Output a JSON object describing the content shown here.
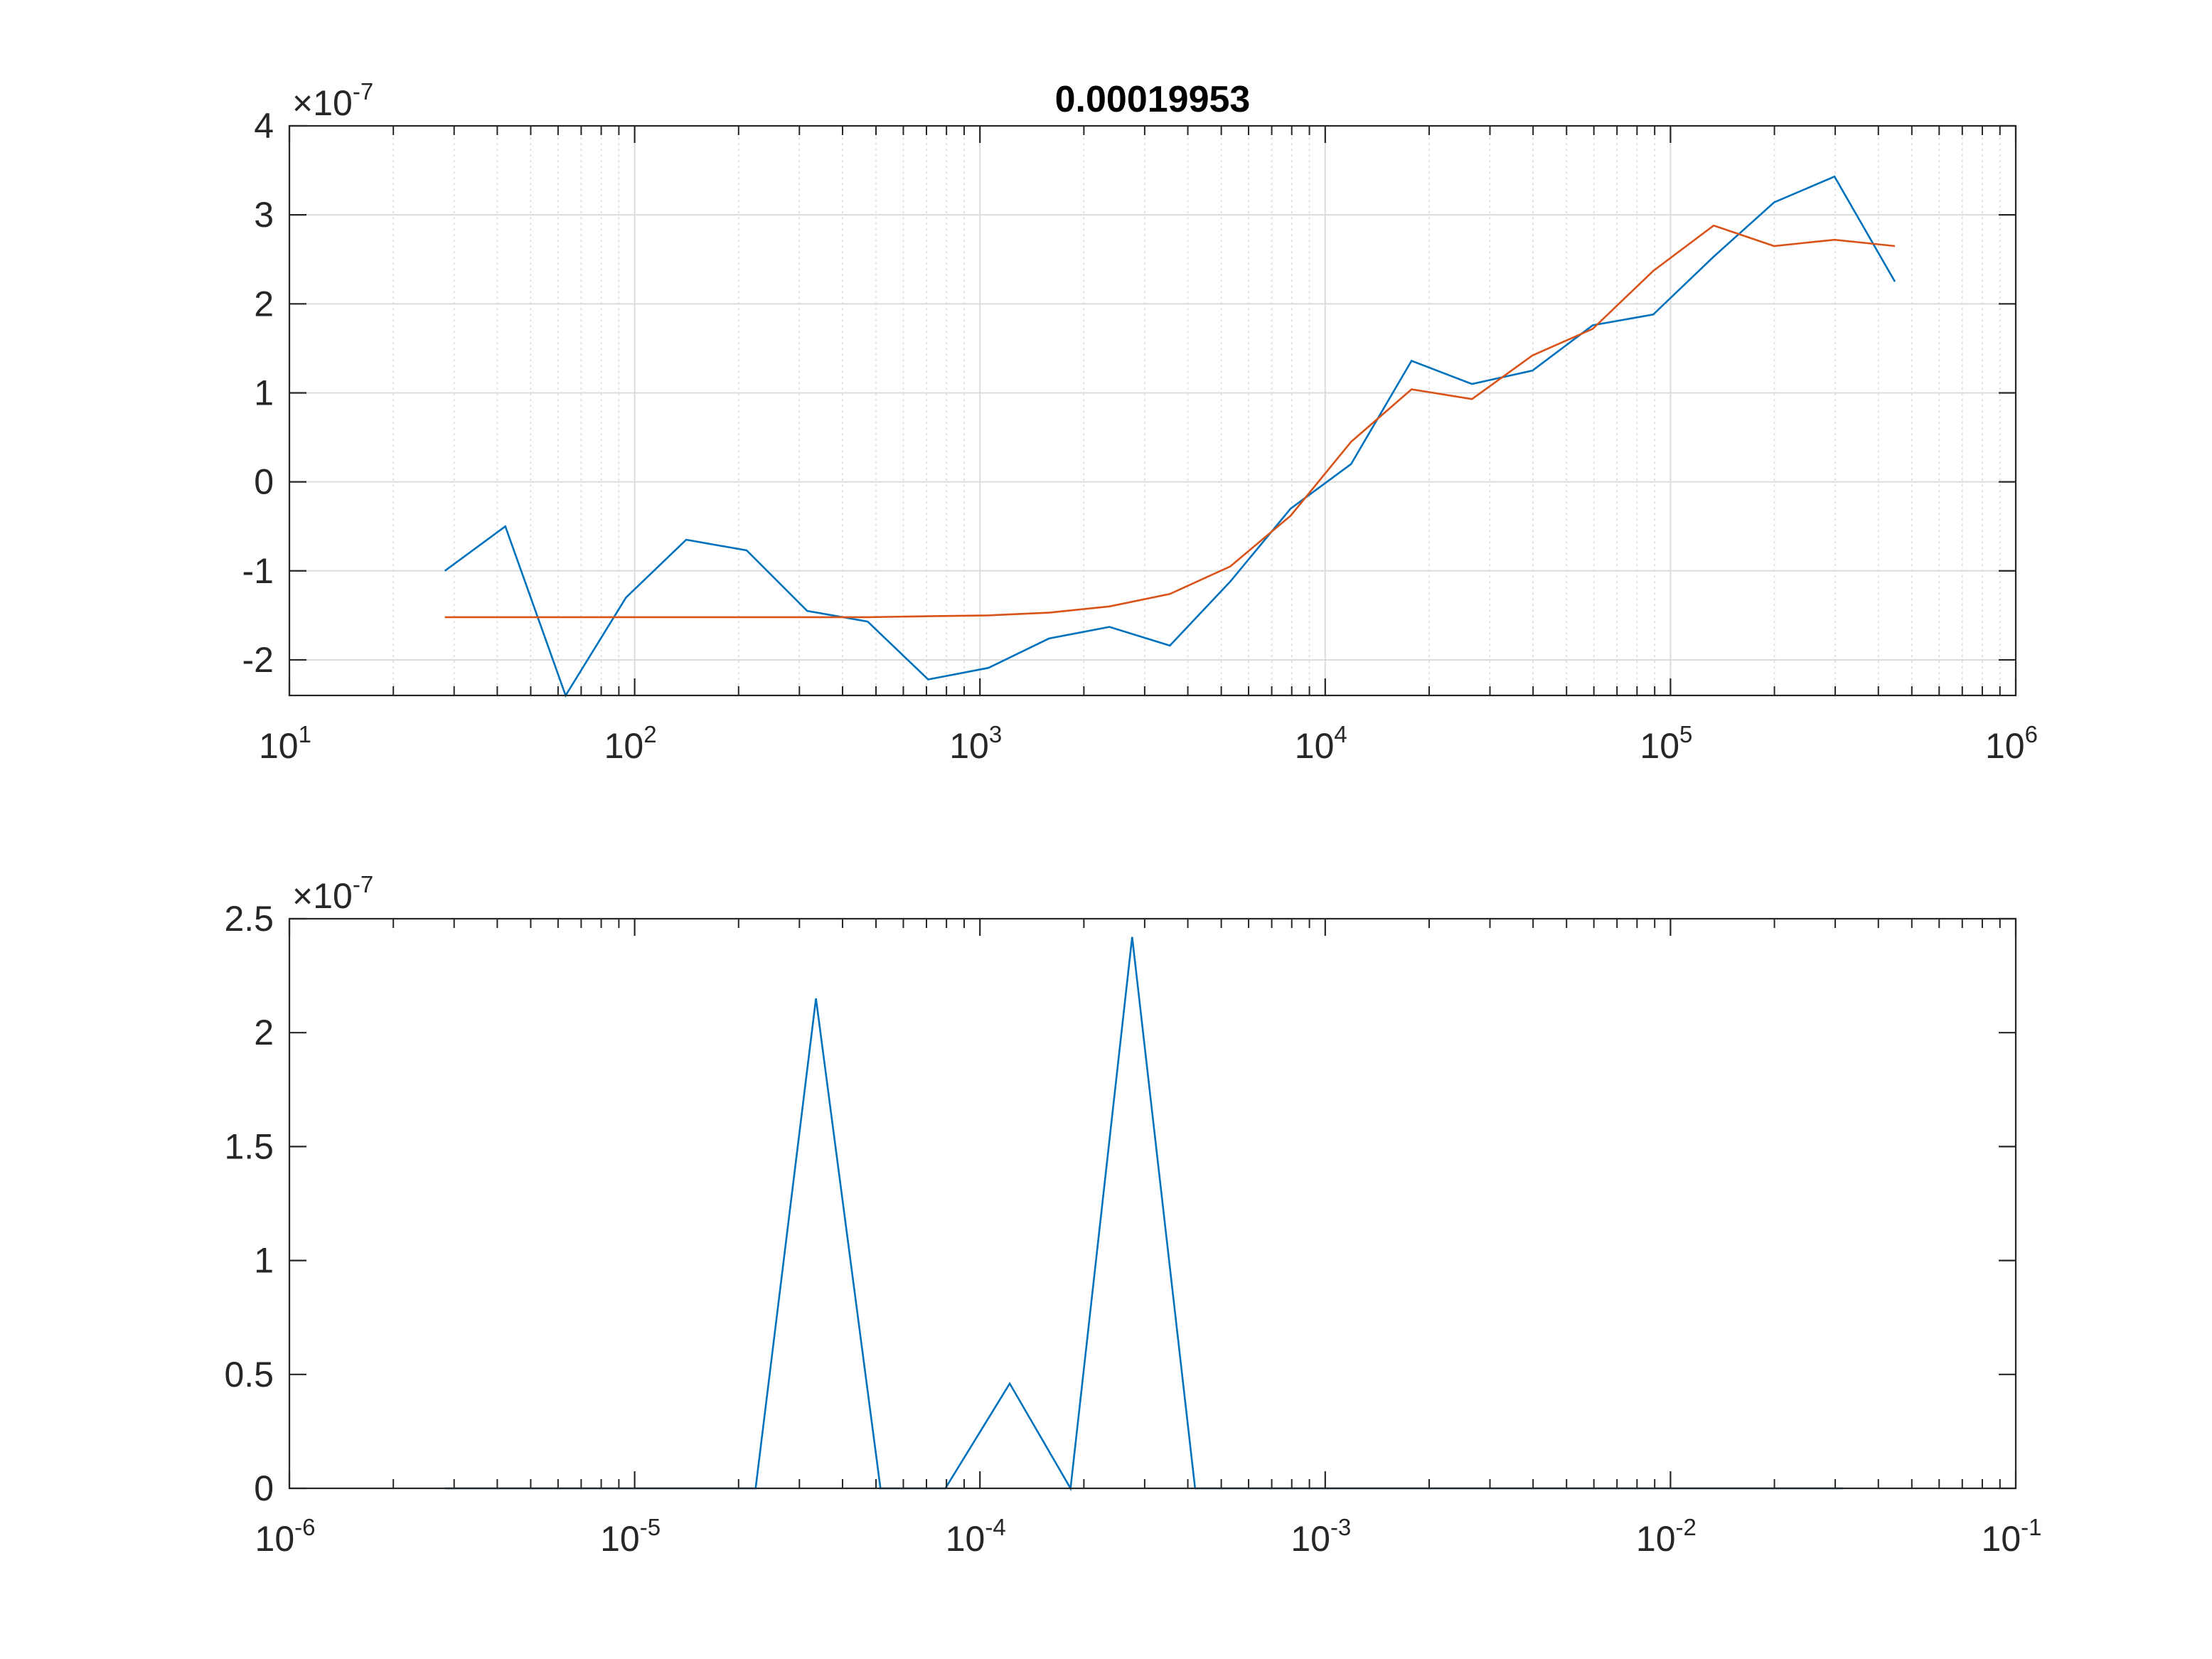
{
  "chart_data": [
    {
      "type": "line",
      "title": "0.00019953",
      "xscale": "log",
      "xlim": [
        10,
        1000000
      ],
      "ylim": [
        -2.4e-07,
        4e-07
      ],
      "y_multiplier_label": "×10",
      "y_multiplier_exponent": "-7",
      "grid": true,
      "x_ticks": [
        {
          "base": "10",
          "exp": "1",
          "value": 10
        },
        {
          "base": "10",
          "exp": "2",
          "value": 100
        },
        {
          "base": "10",
          "exp": "3",
          "value": 1000
        },
        {
          "base": "10",
          "exp": "4",
          "value": 10000
        },
        {
          "base": "10",
          "exp": "5",
          "value": 100000
        },
        {
          "base": "10",
          "exp": "6",
          "value": 1000000
        }
      ],
      "y_ticks": [
        {
          "label": "4",
          "value": 4e-07
        },
        {
          "label": "3",
          "value": 3e-07
        },
        {
          "label": "2",
          "value": 2e-07
        },
        {
          "label": "1",
          "value": 1e-07
        },
        {
          "label": "0",
          "value": 0
        },
        {
          "label": "-1",
          "value": -1e-07
        },
        {
          "label": "-2",
          "value": -2e-07
        }
      ],
      "series": [
        {
          "color": "#0072BD",
          "points": [
            [
              28.2,
              -1e-07
            ],
            [
              42.2,
              -5e-08
            ],
            [
              63.1,
              -2.4e-07
            ],
            [
              94.4,
              -1.3e-07
            ],
            [
              141,
              -6.5e-08
            ],
            [
              211,
              -7.7e-08
            ],
            [
              316,
              -1.45e-07
            ],
            [
              473,
              -1.57e-07
            ],
            [
              708,
              -2.22e-07
            ],
            [
              1059,
              -2.09e-07
            ],
            [
              1585,
              -1.76e-07
            ],
            [
              2371,
              -1.63e-07
            ],
            [
              3548,
              -1.84e-07
            ],
            [
              5309,
              -1.12e-07
            ],
            [
              7943,
              -3e-08
            ],
            [
              11885,
              2e-08
            ],
            [
              17783,
              1.36e-07
            ],
            [
              26607,
              1.1e-07
            ],
            [
              39811,
              1.25e-07
            ],
            [
              59566,
              1.76e-07
            ],
            [
              89125,
              1.88e-07
            ],
            [
              133352,
              2.53e-07
            ],
            [
              199526,
              3.14e-07
            ],
            [
              298538,
              3.43e-07
            ],
            [
              446684,
              2.25e-07
            ]
          ]
        },
        {
          "color": "#D95319",
          "points": [
            [
              28.2,
              -1.52e-07
            ],
            [
              42.2,
              -1.52e-07
            ],
            [
              63.1,
              -1.52e-07
            ],
            [
              94.4,
              -1.52e-07
            ],
            [
              141,
              -1.52e-07
            ],
            [
              211,
              -1.52e-07
            ],
            [
              316,
              -1.52e-07
            ],
            [
              473,
              -1.52e-07
            ],
            [
              708,
              -1.51e-07
            ],
            [
              1059,
              -1.5e-07
            ],
            [
              1585,
              -1.47e-07
            ],
            [
              2371,
              -1.4e-07
            ],
            [
              3548,
              -1.26e-07
            ],
            [
              5309,
              -9.5e-08
            ],
            [
              7943,
              -3.8e-08
            ],
            [
              11885,
              4.5e-08
            ],
            [
              17783,
              1.04e-07
            ],
            [
              26607,
              9.3e-08
            ],
            [
              39811,
              1.42e-07
            ],
            [
              59566,
              1.72e-07
            ],
            [
              89125,
              2.37e-07
            ],
            [
              133352,
              2.88e-07
            ],
            [
              199526,
              2.65e-07
            ],
            [
              298538,
              2.72e-07
            ],
            [
              446684,
              2.65e-07
            ]
          ]
        }
      ]
    },
    {
      "type": "line",
      "xscale": "log",
      "xlim": [
        1e-06,
        0.1
      ],
      "ylim": [
        0,
        2.5e-07
      ],
      "y_multiplier_label": "×10",
      "y_multiplier_exponent": "-7",
      "grid": false,
      "x_ticks": [
        {
          "base": "10",
          "exp": "-6",
          "value": 1e-06
        },
        {
          "base": "10",
          "exp": "-5",
          "value": 1e-05
        },
        {
          "base": "10",
          "exp": "-4",
          "value": 0.0001
        },
        {
          "base": "10",
          "exp": "-3",
          "value": 0.001
        },
        {
          "base": "10",
          "exp": "-2",
          "value": 0.01
        },
        {
          "base": "10",
          "exp": "-1",
          "value": 0.1
        }
      ],
      "y_ticks": [
        {
          "label": "2.5",
          "value": 2.5e-07
        },
        {
          "label": "2",
          "value": 2e-07
        },
        {
          "label": "1.5",
          "value": 1.5e-07
        },
        {
          "label": "1",
          "value": 1e-07
        },
        {
          "label": "0.5",
          "value": 5e-08
        },
        {
          "label": "0",
          "value": 0
        }
      ],
      "series": [
        {
          "color": "#0072BD",
          "points": [
            [
              2.82e-06,
              0
            ],
            [
              4.22e-06,
              0
            ],
            [
              6.31e-06,
              0
            ],
            [
              9.44e-06,
              0
            ],
            [
              1.41e-05,
              0
            ],
            [
              2.24e-05,
              0
            ],
            [
              3.35e-05,
              2.15e-07
            ],
            [
              5.15e-05,
              0
            ],
            [
              7.94e-05,
              0
            ],
            [
              0.000122,
              4.6e-08
            ],
            [
              0.000183,
              0
            ],
            [
              0.000276,
              2.42e-07
            ],
            [
              0.00042,
              0
            ],
            [
              0.000631,
              0
            ],
            [
              0.001,
              0
            ],
            [
              0.00158,
              0
            ],
            [
              0.00251,
              0
            ],
            [
              0.00398,
              0
            ],
            [
              0.00631,
              0
            ],
            [
              0.01,
              0
            ],
            [
              0.0158,
              0
            ],
            [
              0.0251,
              0
            ],
            [
              0.0316,
              0
            ]
          ]
        }
      ]
    }
  ]
}
